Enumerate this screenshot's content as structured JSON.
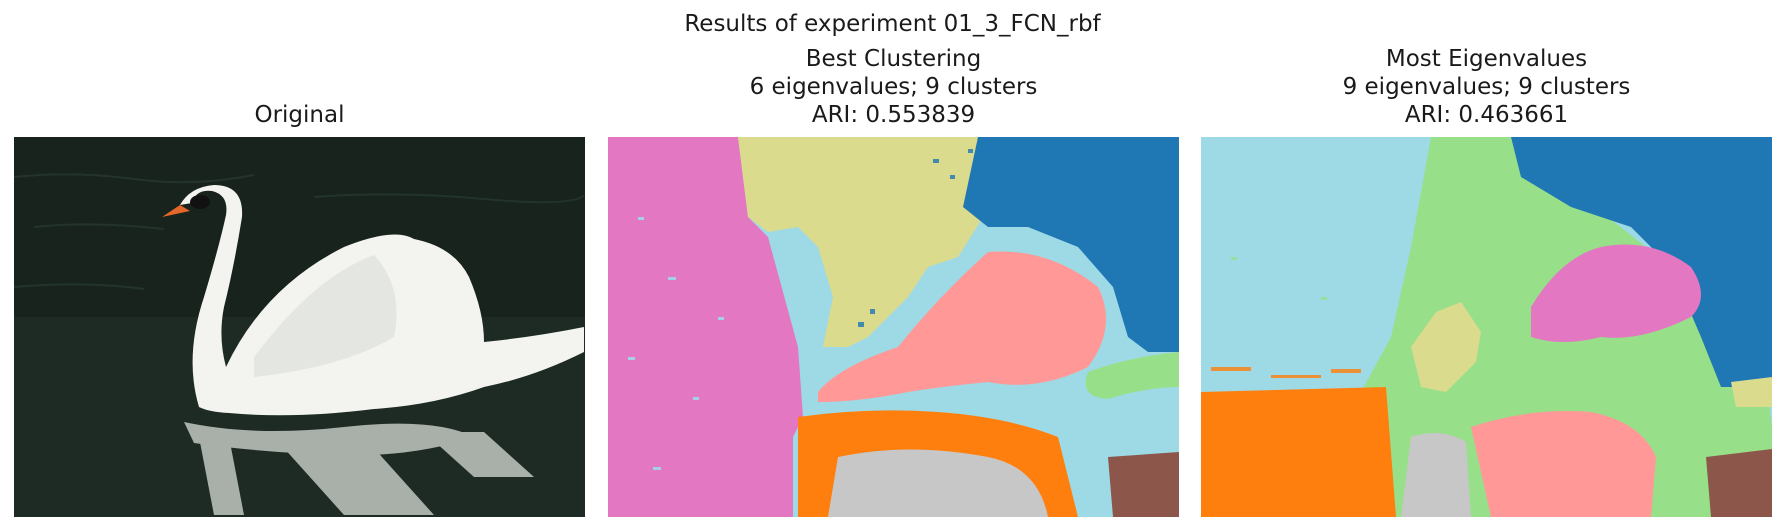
{
  "figure": {
    "title": "Results of experiment 01_3_FCN_rbf"
  },
  "panels": [
    {
      "title_lines": [
        "Original"
      ],
      "kind": "photo",
      "image": "swan on dark water with reflection"
    },
    {
      "title_lines": [
        "Best Clustering",
        "6 eigenvalues; 9 clusters",
        "ARI: 0.553839"
      ],
      "kind": "segmentation"
    },
    {
      "title_lines": [
        "Most Eigenvalues",
        "9 eigenvalues; 9 clusters",
        "ARI: 0.463661"
      ],
      "kind": "segmentation"
    }
  ],
  "cluster_colors": {
    "pink": "#e377c2",
    "olive": "#dbdb8d",
    "blue": "#1f77b4",
    "cyan": "#9edae5",
    "salmon": "#ff9896",
    "green": "#98df8a",
    "orange": "#ff7f0e",
    "gray": "#c7c7c7",
    "brown": "#8c564b"
  }
}
